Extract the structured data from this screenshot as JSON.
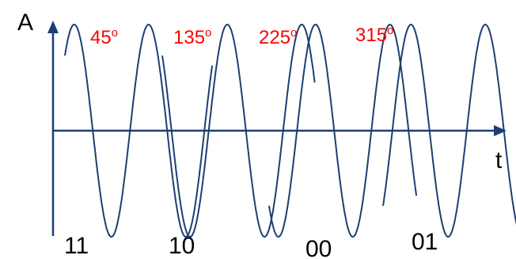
{
  "colors": {
    "axis": "#1c3f73",
    "wave": "#1c3f73",
    "phase_text": "#ff0000",
    "bit_text": "#000000"
  },
  "axes": {
    "y_label": "A",
    "x_label": "t"
  },
  "segments": [
    {
      "phase_value": "45",
      "degree_mark": "o",
      "bits": "11"
    },
    {
      "phase_value": "135",
      "degree_mark": "o",
      "bits": "10"
    },
    {
      "phase_value": "225",
      "degree_mark": "o",
      "bits": "00"
    },
    {
      "phase_value": "315",
      "degree_mark": "o",
      "bits": "01"
    }
  ]
}
